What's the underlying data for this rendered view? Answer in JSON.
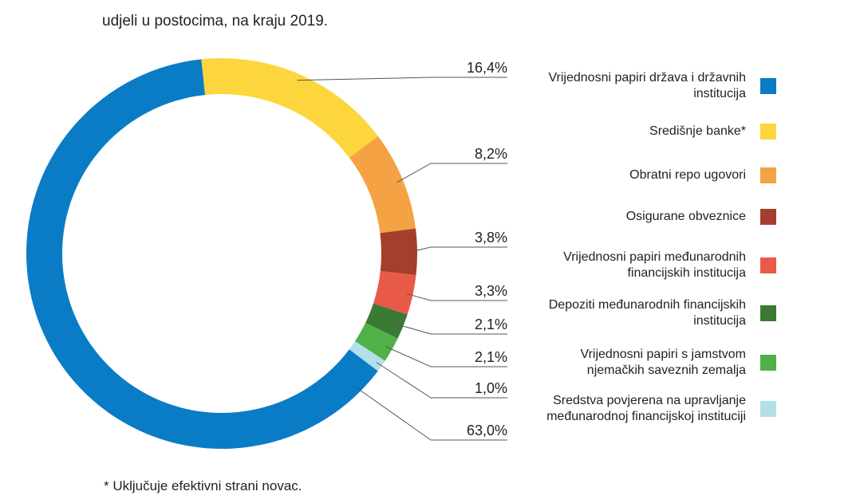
{
  "chart_data": {
    "type": "donut",
    "title": "udjeli u postocima, na kraju 2019.",
    "footnote": "* Uključuje efektivni strani novac.",
    "categories": [
      "Vrijednosni papiri država i državnih institucija",
      "Središnje banke*",
      "Obratni repo ugovori",
      "Osigurane obveznice",
      "Vrijednosni papiri međunarodnih financijskih institucija",
      "Depoziti međunarodnih financijskih institucija",
      "Vrijednosni papiri s jamstvom njemačkih saveznih zemalja",
      "Sredstva povjerena na upravljanje međunarodnoj financijskoj instituciji"
    ],
    "values": [
      63.0,
      16.4,
      8.2,
      3.8,
      3.3,
      2.1,
      2.1,
      1.0
    ],
    "value_labels": [
      "63,0%",
      "16,4%",
      "8,2%",
      "3,8%",
      "3,3%",
      "2,1%",
      "2,1%",
      "1,0%"
    ],
    "colors": [
      "#0a7cc6",
      "#fcd63c",
      "#f4a243",
      "#a53e2c",
      "#e95a48",
      "#3a7a35",
      "#4fb148",
      "#b3dfe9"
    ]
  }
}
